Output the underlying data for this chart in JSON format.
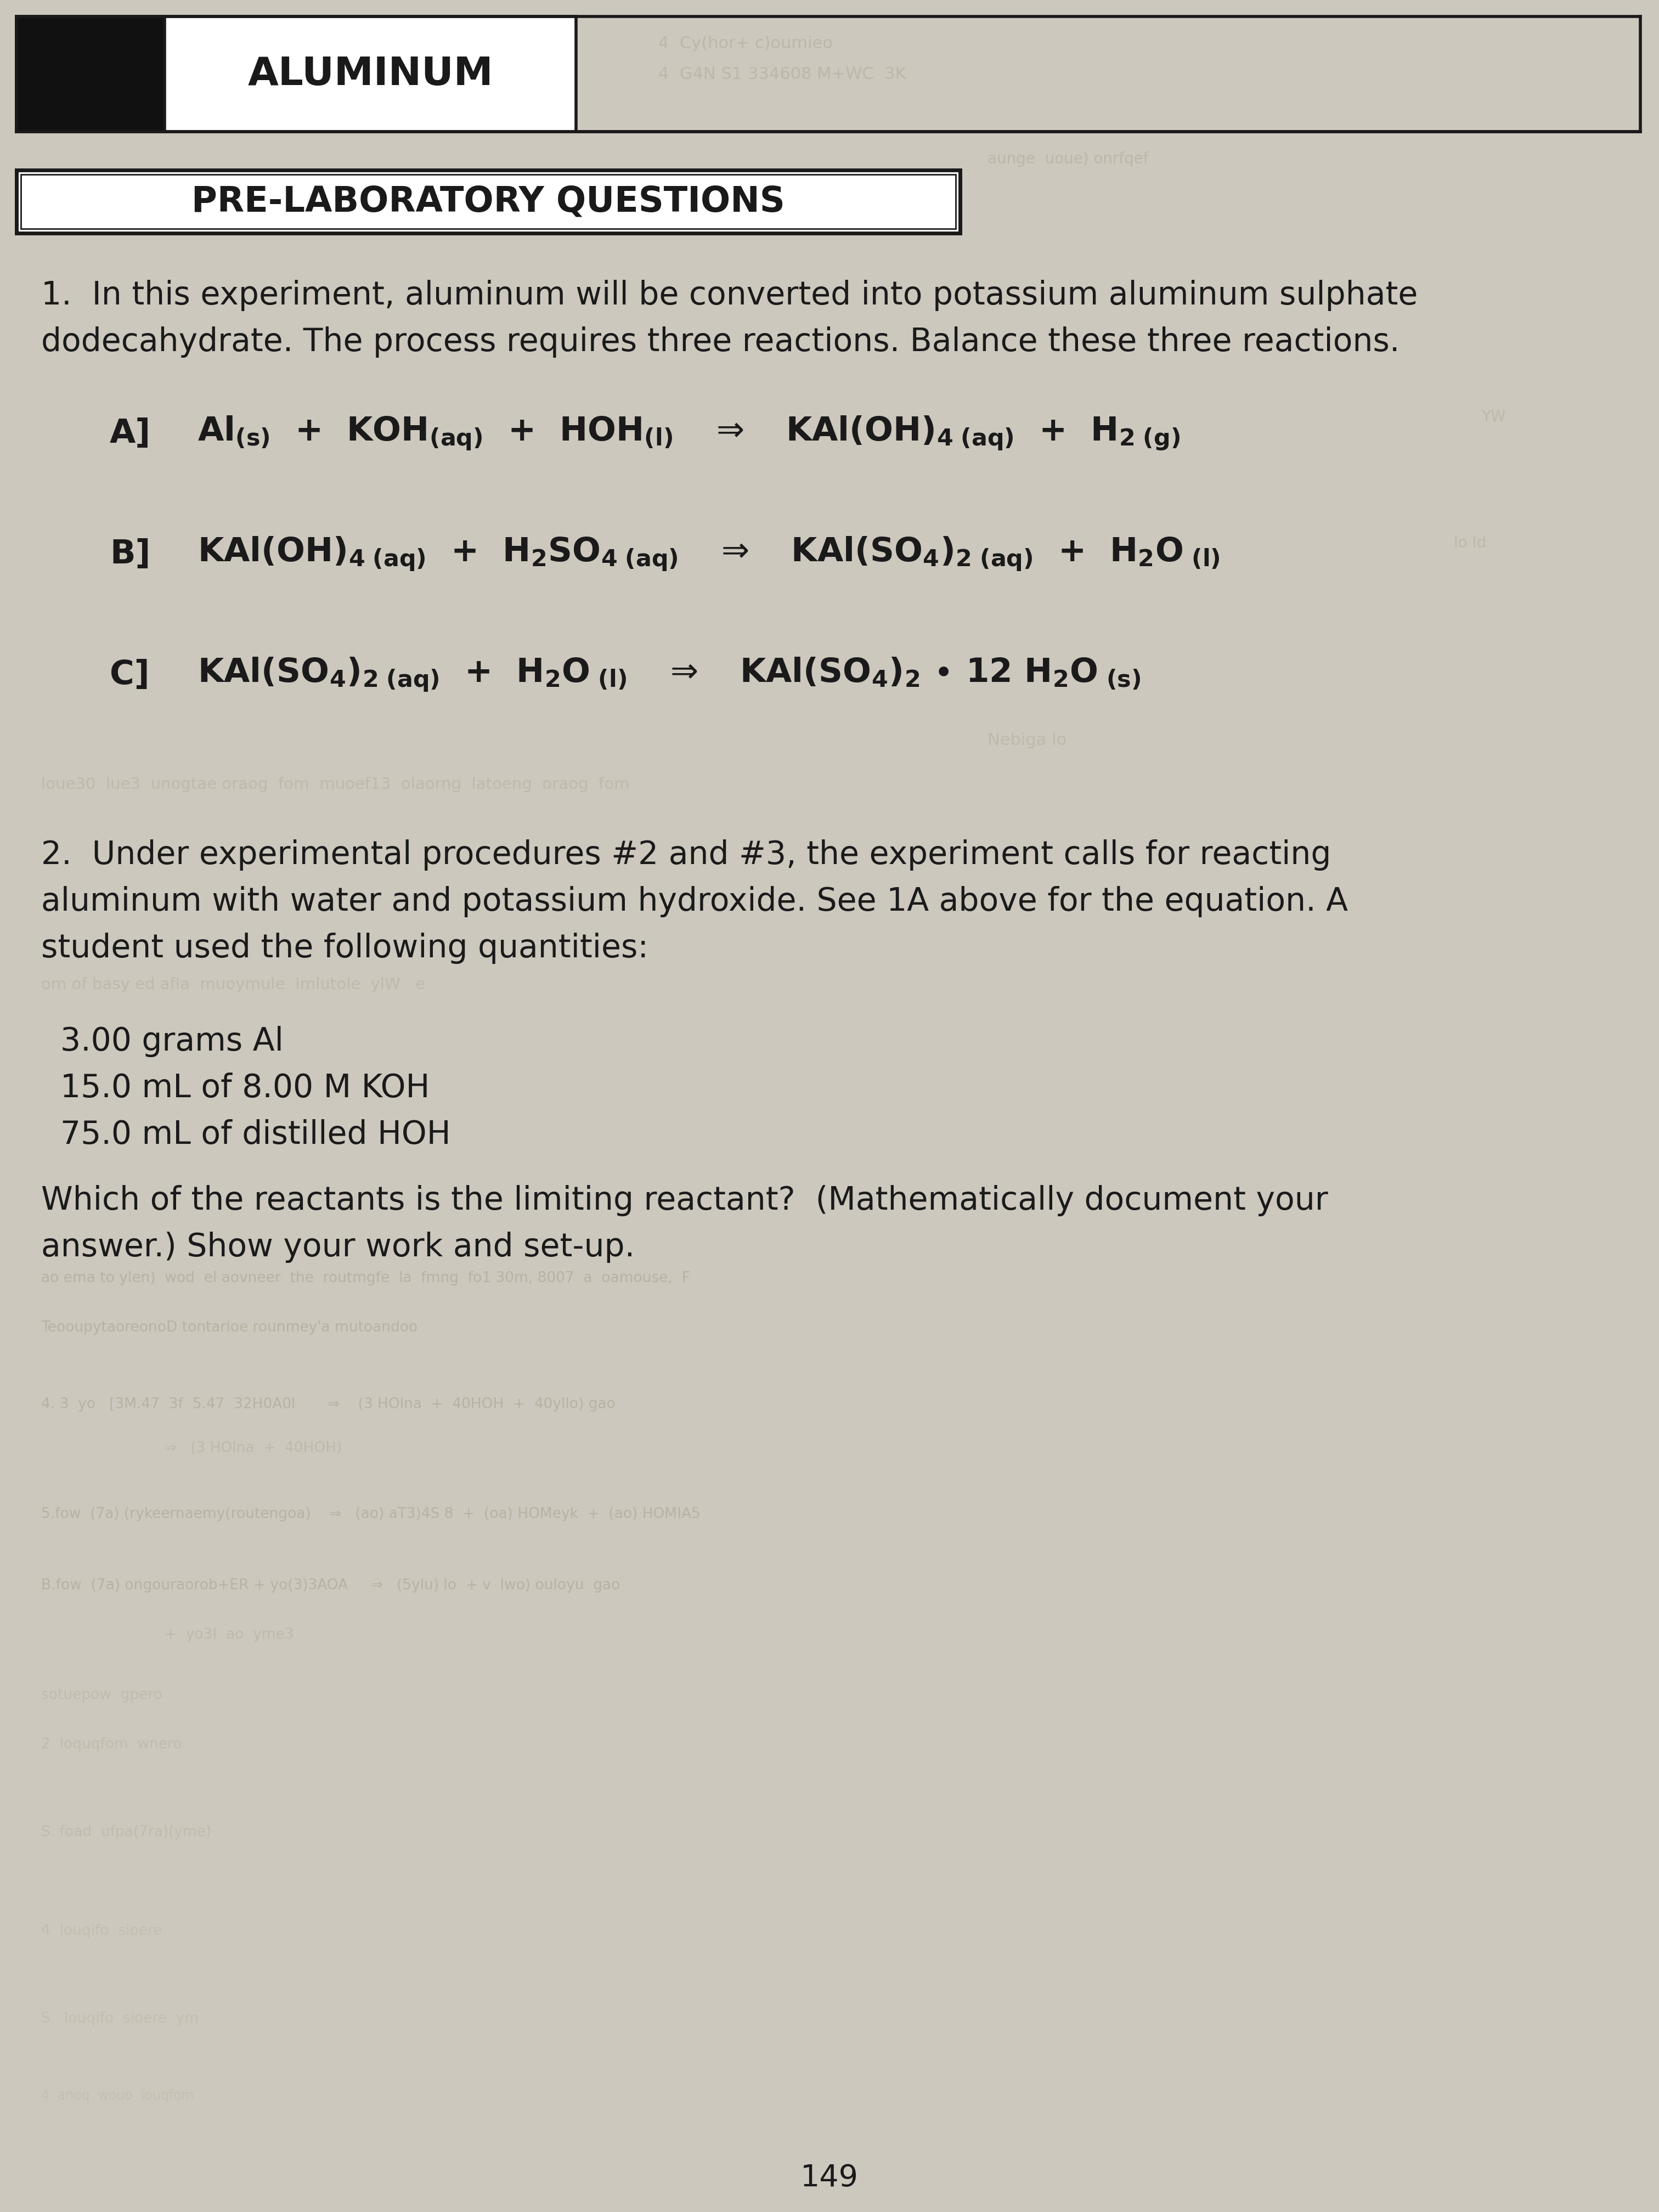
{
  "bg_color": "#ccc8be",
  "text_color": "#1a1a1a",
  "title": "ALUMINUM",
  "section_title": "PRE-LABORATORY QUESTIONS",
  "q1_intro_1": "1.  In this experiment, aluminum will be converted into potassium aluminum sulphate",
  "q1_intro_2": "dodecahydrate. The process requires three reactions. Balance these three reactions.",
  "rxn_A_label": "A]",
  "rxn_B_label": "B]",
  "rxn_C_label": "C]",
  "q2_line1": "2.  Under experimental procedures #2 and #3, the experiment calls for reacting",
  "q2_line2": "aluminum with water and potassium hydroxide. See 1A above for the equation. A",
  "q2_line3": "student used the following quantities:",
  "qty1": "3.00 grams Al",
  "qty2": "15.0 mL of 8.00 M KOH",
  "qty3": "75.0 mL of distilled HOH",
  "q2q1": "Which of the reactants is the limiting reactant?  (Mathematically document your",
  "q2q2": "answer.) Show your work and set-up.",
  "page_number": "149",
  "faded_color": "#a09880",
  "faded_alpha": 0.45
}
